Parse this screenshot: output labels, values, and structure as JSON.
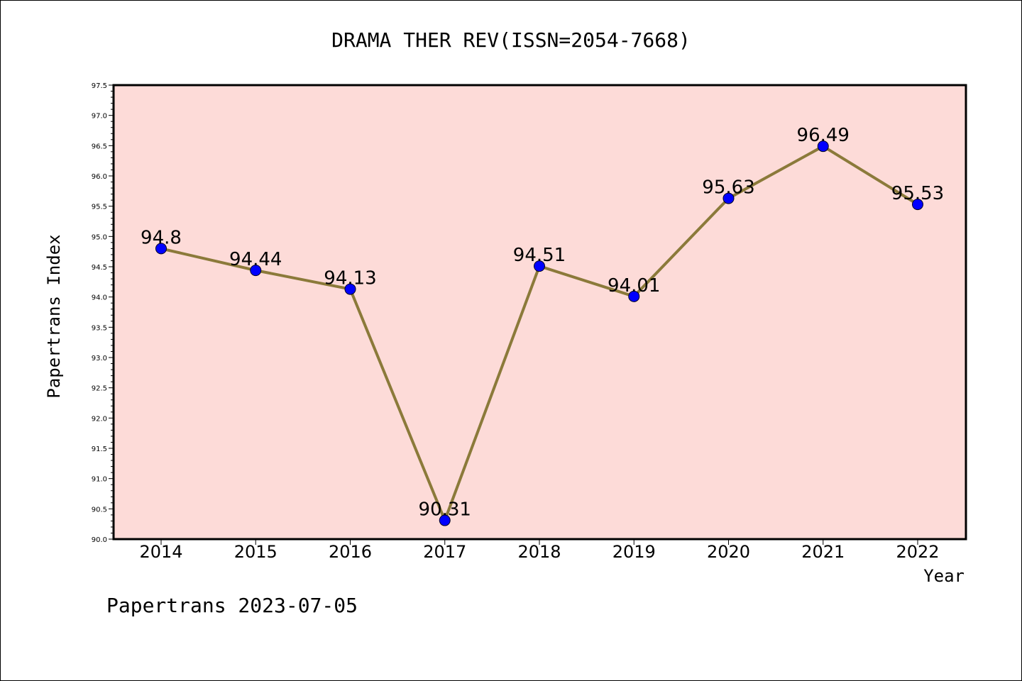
{
  "chart_data": {
    "type": "line",
    "title": "DRAMA THER REV(ISSN=2054-7668)",
    "xlabel": "Year",
    "ylabel": "Papertrans Index",
    "categories": [
      "2014",
      "2015",
      "2016",
      "2017",
      "2018",
      "2019",
      "2020",
      "2021",
      "2022"
    ],
    "series": [
      {
        "values": [
          94.8,
          94.44,
          94.13,
          90.31,
          94.51,
          94.01,
          95.63,
          96.49,
          95.53
        ],
        "labels": [
          "94.8",
          "94.44",
          "94.13",
          "90.31",
          "94.51",
          "94.01",
          "95.63",
          "96.49",
          "95.53"
        ]
      }
    ],
    "ylim": [
      90.0,
      97.5
    ],
    "yticks": [
      "90.0",
      "90.5",
      "91.0",
      "91.5",
      "92.0",
      "92.5",
      "93.0",
      "93.5",
      "94.0",
      "94.5",
      "95.0",
      "95.5",
      "96.0",
      "96.5",
      "97.0",
      "97.5"
    ],
    "grid": false,
    "legend": "none",
    "colors": {
      "plot_background": "#fddbd8",
      "line": "#8b7a3a",
      "marker": "#0000ff"
    }
  },
  "footer": "Papertrans 2023-07-05"
}
